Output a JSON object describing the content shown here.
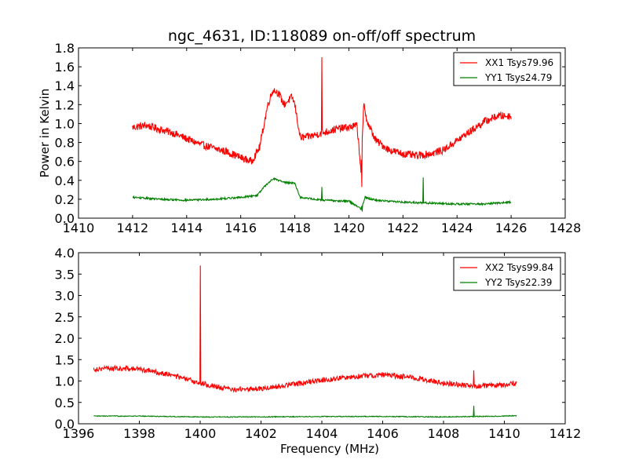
{
  "figure": {
    "title": "ngc_4631, ID:118089 on-off/off spectrum"
  },
  "chart_data": [
    {
      "type": "line",
      "title": "ngc_4631, ID:118089 on-off/off spectrum",
      "xlabel": "",
      "ylabel": "Power in Kelvin",
      "xlim": [
        1410,
        1428
      ],
      "ylim": [
        0.0,
        1.8
      ],
      "xticks": [
        1410,
        1412,
        1414,
        1416,
        1418,
        1420,
        1422,
        1424,
        1426,
        1428
      ],
      "yticks": [
        0.0,
        0.2,
        0.4,
        0.6,
        0.8,
        1.0,
        1.2,
        1.4,
        1.6,
        1.8
      ],
      "xtick_labels": [
        "1410",
        "1412",
        "1414",
        "1416",
        "1418",
        "1420",
        "1422",
        "1424",
        "1426",
        "1428"
      ],
      "ytick_labels": [
        "0.0",
        "0.2",
        "0.4",
        "0.6",
        "0.8",
        "1.0",
        "1.2",
        "1.4",
        "1.6",
        "1.8"
      ],
      "grid": false,
      "legend_position": "top-right",
      "series": [
        {
          "name": "XX1 Tsys79.96",
          "color": "#ff0000",
          "noise": 0.04,
          "x": [
            1412.0,
            1412.5,
            1413.0,
            1413.5,
            1414.0,
            1414.5,
            1415.0,
            1415.5,
            1416.0,
            1416.4,
            1416.7,
            1417.0,
            1417.2,
            1417.4,
            1417.6,
            1417.9,
            1418.0,
            1418.2,
            1418.5,
            1419.0,
            1419.5,
            1420.0,
            1420.3,
            1420.45,
            1420.55,
            1420.7,
            1421.0,
            1421.5,
            1422.0,
            1422.5,
            1423.0,
            1423.5,
            1424.0,
            1424.5,
            1425.0,
            1425.5,
            1426.0
          ],
          "y": [
            0.96,
            0.98,
            0.94,
            0.9,
            0.84,
            0.78,
            0.74,
            0.7,
            0.64,
            0.6,
            0.75,
            1.2,
            1.36,
            1.32,
            1.2,
            1.28,
            1.2,
            0.85,
            0.86,
            0.9,
            0.94,
            0.96,
            0.98,
            0.5,
            1.2,
            1.0,
            0.82,
            0.72,
            0.68,
            0.66,
            0.68,
            0.72,
            0.82,
            0.92,
            1.02,
            1.08,
            1.08
          ],
          "spikes": [
            {
              "x": 1419.0,
              "y": 1.7
            },
            {
              "x": 1420.48,
              "y": 0.33
            }
          ]
        },
        {
          "name": "YY1 Tsys24.79",
          "color": "#007f00",
          "noise": 0.01,
          "x": [
            1412.0,
            1413.0,
            1414.0,
            1415.0,
            1416.0,
            1416.6,
            1416.9,
            1417.2,
            1417.6,
            1418.0,
            1418.2,
            1419.0,
            1420.0,
            1420.45,
            1420.6,
            1421.0,
            1422.0,
            1423.0,
            1424.0,
            1425.0,
            1426.0
          ],
          "y": [
            0.22,
            0.2,
            0.19,
            0.2,
            0.22,
            0.24,
            0.34,
            0.42,
            0.38,
            0.37,
            0.22,
            0.19,
            0.18,
            0.1,
            0.22,
            0.19,
            0.17,
            0.16,
            0.15,
            0.15,
            0.17
          ],
          "spikes": [
            {
              "x": 1419.0,
              "y": 0.33
            },
            {
              "x": 1420.5,
              "y": 0.07
            },
            {
              "x": 1422.75,
              "y": 0.43
            }
          ]
        }
      ]
    },
    {
      "type": "line",
      "title": "",
      "xlabel": "Frequency (MHz)",
      "ylabel": "",
      "xlim": [
        1396,
        1412
      ],
      "ylim": [
        0.0,
        4.0
      ],
      "xticks": [
        1396,
        1398,
        1400,
        1402,
        1404,
        1406,
        1408,
        1410,
        1412
      ],
      "yticks": [
        0.0,
        0.5,
        1.0,
        1.5,
        2.0,
        2.5,
        3.0,
        3.5,
        4.0
      ],
      "xtick_labels": [
        "1396",
        "1398",
        "1400",
        "1402",
        "1404",
        "1406",
        "1408",
        "1410",
        "1412"
      ],
      "ytick_labels": [
        "0.0",
        "0.5",
        "1.0",
        "1.5",
        "2.0",
        "2.5",
        "3.0",
        "3.5",
        "4.0"
      ],
      "grid": false,
      "legend_position": "top-right",
      "series": [
        {
          "name": "XX2 Tsys99.84",
          "color": "#ff0000",
          "noise": 0.06,
          "x": [
            1396.5,
            1397.0,
            1398.0,
            1399.0,
            1400.0,
            1401.0,
            1402.0,
            1403.0,
            1404.0,
            1405.0,
            1406.0,
            1407.0,
            1408.0,
            1409.0,
            1410.0,
            1410.4
          ],
          "y": [
            1.28,
            1.3,
            1.28,
            1.15,
            0.95,
            0.8,
            0.82,
            0.92,
            1.02,
            1.1,
            1.15,
            1.08,
            0.95,
            0.88,
            0.9,
            0.95
          ],
          "spikes": [
            {
              "x": 1400.0,
              "y": 3.7
            },
            {
              "x": 1409.0,
              "y": 1.25
            }
          ]
        },
        {
          "name": "YY2 Tsys22.39",
          "color": "#007f00",
          "noise": 0.01,
          "x": [
            1396.5,
            1398.0,
            1400.0,
            1402.0,
            1404.0,
            1406.0,
            1408.0,
            1410.0,
            1410.4
          ],
          "y": [
            0.18,
            0.18,
            0.16,
            0.16,
            0.17,
            0.17,
            0.16,
            0.18,
            0.19
          ],
          "spikes": [
            {
              "x": 1409.0,
              "y": 0.42
            }
          ]
        }
      ]
    }
  ]
}
